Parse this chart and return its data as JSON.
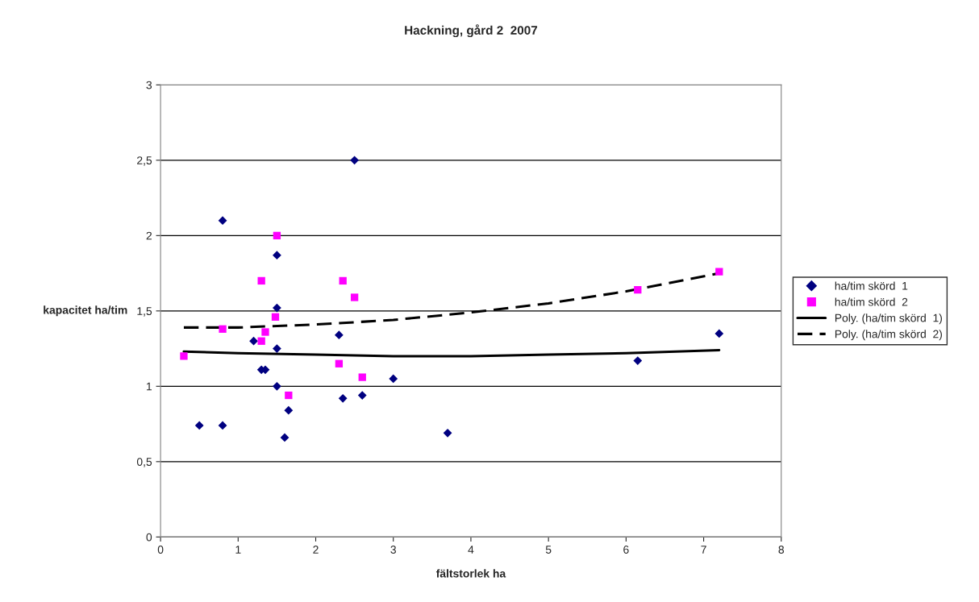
{
  "chart_data": {
    "type": "scatter",
    "title": "Hackning, gård 2  2007",
    "xlabel": "fältstorlek ha",
    "ylabel": "kapacitet ha/tim",
    "xlim": [
      0,
      8
    ],
    "xticks": [
      0,
      1,
      2,
      3,
      4,
      5,
      6,
      7,
      8
    ],
    "ylim": [
      0,
      3
    ],
    "yticks": [
      0,
      {
        "value": 0.5,
        "label": "0,5"
      },
      1,
      {
        "value": 1.5,
        "label": "1,5"
      },
      2,
      {
        "value": 2.5,
        "label": "2,5"
      },
      3
    ],
    "grid": "y",
    "legend": "right",
    "series": [
      {
        "name": "ha/tim skörd  1",
        "color": "#000080",
        "marker": "diamond",
        "x": [
          0.5,
          0.8,
          0.8,
          1.2,
          1.3,
          1.35,
          1.5,
          1.5,
          1.5,
          1.5,
          1.65,
          1.6,
          2.3,
          2.5,
          2.35,
          2.6,
          3.0,
          3.7,
          6.15,
          7.2
        ],
        "values": [
          0.74,
          0.74,
          2.1,
          1.3,
          1.11,
          1.11,
          1.87,
          1.52,
          1.25,
          1.0,
          0.84,
          0.66,
          1.34,
          2.5,
          0.92,
          0.94,
          1.05,
          0.69,
          1.17,
          1.35
        ]
      },
      {
        "name": "ha/tim skörd  2",
        "color": "#ff00ff",
        "marker": "square",
        "x": [
          0.3,
          0.8,
          1.3,
          1.3,
          1.35,
          1.48,
          1.5,
          1.65,
          2.3,
          2.35,
          2.5,
          2.6,
          6.15,
          7.2
        ],
        "values": [
          1.2,
          1.38,
          1.7,
          1.3,
          1.36,
          1.46,
          2.0,
          0.94,
          1.15,
          1.7,
          1.59,
          1.06,
          1.64,
          1.76
        ]
      },
      {
        "name": "Poly. (ha/tim skörd  1)",
        "type": "line",
        "color": "#000000",
        "line_style": "solid",
        "x": [
          0.3,
          1,
          2,
          3,
          4,
          5,
          6,
          7.2
        ],
        "values": [
          1.23,
          1.22,
          1.21,
          1.2,
          1.2,
          1.21,
          1.22,
          1.24
        ]
      },
      {
        "name": "Poly. (ha/tim skörd  2)",
        "type": "line",
        "color": "#000000",
        "line_style": "dashed",
        "x": [
          0.3,
          1,
          2,
          3,
          4,
          5,
          6,
          7.2
        ],
        "values": [
          1.39,
          1.39,
          1.41,
          1.44,
          1.49,
          1.55,
          1.63,
          1.75
        ]
      }
    ]
  }
}
